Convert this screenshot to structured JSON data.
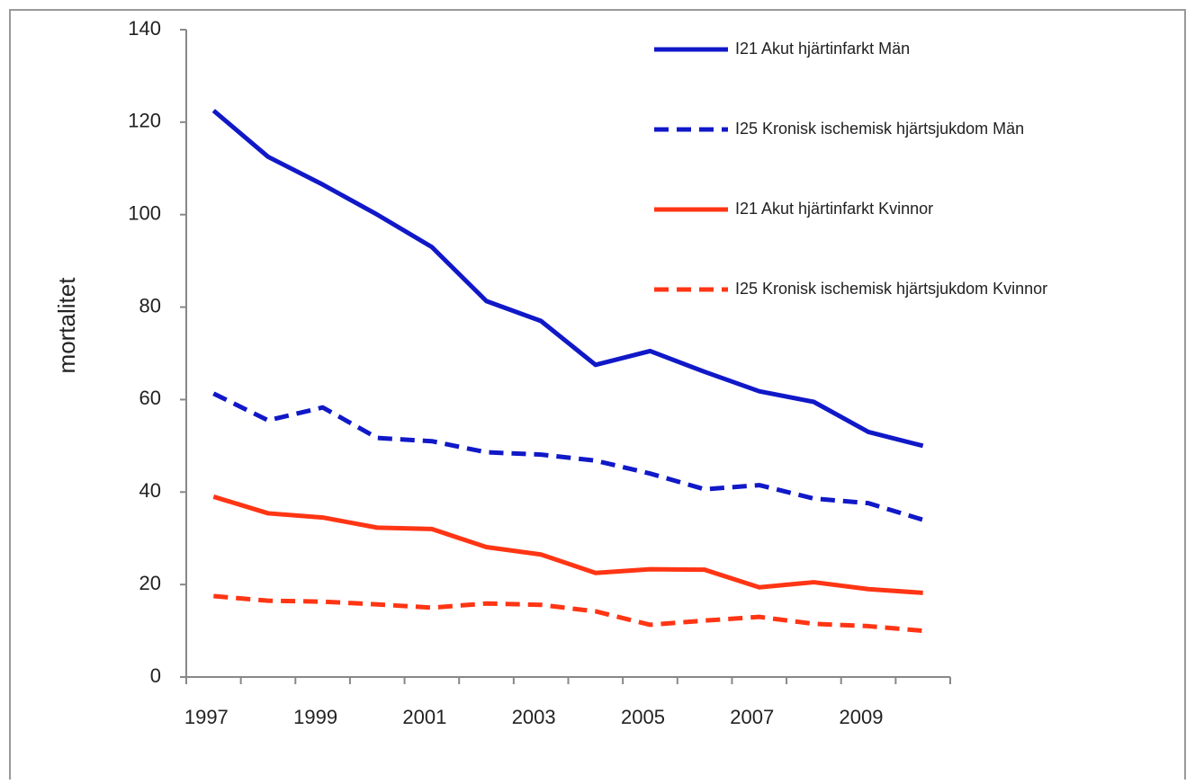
{
  "chart_data": {
    "type": "line",
    "y_label": "mortalitet",
    "categories": [
      1997,
      null,
      1999,
      null,
      2001,
      null,
      2003,
      null,
      2005,
      null,
      2007,
      null,
      2009,
      null
    ],
    "ylim": [
      0,
      140
    ],
    "yticks": [
      0,
      20,
      40,
      60,
      80,
      100,
      120,
      140
    ],
    "legend_position": "upper right",
    "series": [
      {
        "name": "I21 Akut hjärtinfarkt Män",
        "color": "#1018c8",
        "dashed": false,
        "values": [
          122.5,
          112.5,
          106.5,
          100,
          93,
          81.3,
          77,
          67.5,
          70.5,
          66,
          61.8,
          59.5,
          53,
          50
        ]
      },
      {
        "name": "I25 Kronisk ischemisk hjärtsjukdom Män",
        "color": "#1018c8",
        "dashed": true,
        "values": [
          61.3,
          55.5,
          58.3,
          51.7,
          51,
          48.6,
          48.1,
          46.8,
          44,
          40.6,
          41.5,
          38.6,
          37.6,
          34
        ]
      },
      {
        "name": "I21 Akut hjärtinfarkt Kvinnor",
        "color": "#ff3514",
        "dashed": false,
        "values": [
          39,
          35.4,
          34.5,
          32.3,
          32,
          28.1,
          26.5,
          22.5,
          23.3,
          23.2,
          19.4,
          20.5,
          19,
          18.2
        ]
      },
      {
        "name": "I25 Kronisk ischemisk hjärtsjukdom Kvinnor",
        "color": "#ff3514",
        "dashed": true,
        "values": [
          17.5,
          16.5,
          16.3,
          15.7,
          15,
          15.9,
          15.6,
          14.2,
          11.3,
          12.2,
          13,
          11.5,
          11,
          10
        ]
      }
    ]
  }
}
